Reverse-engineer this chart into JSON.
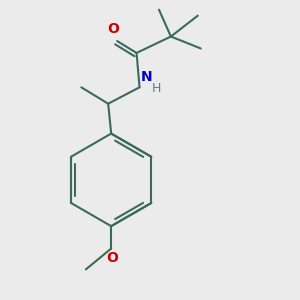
{
  "bg_color": "#ebebeb",
  "bond_color": "#3a6b5a",
  "O_color": "#cc0000",
  "N_color": "#0000cc",
  "H_color": "#4a8a7a",
  "line_width": 1.5,
  "figsize": [
    3.0,
    3.0
  ],
  "dpi": 100,
  "xlim": [
    0.0,
    1.0
  ],
  "ylim": [
    0.0,
    1.0
  ]
}
